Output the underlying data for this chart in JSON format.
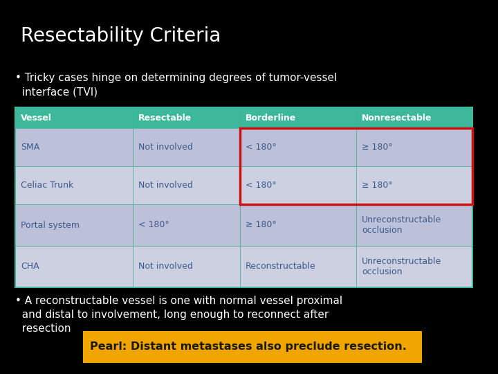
{
  "title": "Resectability Criteria",
  "background_color": "#000000",
  "title_color": "#ffffff",
  "bullet1_line1": "• Tricky cases hinge on determining degrees of tumor-vessel",
  "bullet1_line2": "  interface (TVI)",
  "bullet2_line1": "• A reconstructable vessel is one with normal vessel proximal",
  "bullet2_line2": "  and distal to involvement, long enough to reconnect after",
  "bullet2_line3": "  resection",
  "pearl": "Pearl: Distant metastases also preclude resection.",
  "pearl_bg": "#f0a500",
  "pearl_text_color": "#1a1a00",
  "table_header_bg": "#3db89a",
  "table_header_text": "#ffffff",
  "table_row_bg1": "#bcc0d8",
  "table_row_bg2": "#ccd0e0",
  "table_text_color": "#3a5a8c",
  "table_outline_color": "#3db89a",
  "red_box_color": "#cc1111",
  "headers": [
    "Vessel",
    "Resectable",
    "Borderline",
    "Nonresectable"
  ],
  "rows": [
    [
      "SMA",
      "Not involved",
      "< 180°",
      "≥ 180°"
    ],
    [
      "Celiac Trunk",
      "Not involved",
      "< 180°",
      "≥ 180°"
    ],
    [
      "Portal system",
      "< 180°",
      "≥ 180°",
      "Unreconstructable\nocclusion"
    ],
    [
      "CHA",
      "Not involved",
      "Reconstructable",
      "Unreconstructable\nocclusion"
    ]
  ]
}
